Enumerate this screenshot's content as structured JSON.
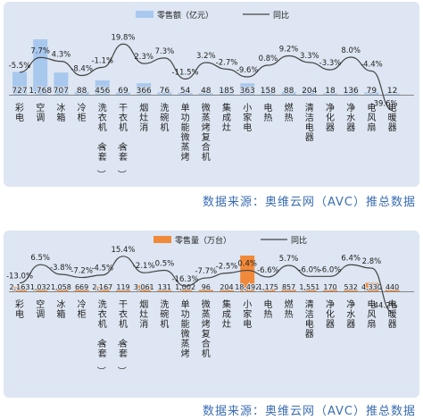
{
  "charts": [
    {
      "type": "bar",
      "legend": {
        "bar_label": "零售额（亿元）",
        "line_label": "同比",
        "placement": "top-center"
      },
      "bar_color": "#a8c8ee",
      "line_color": "#444444",
      "categories": [
        "彩电",
        "空调",
        "冰箱",
        "冷柜",
        "洗衣机（含套）",
        "干衣机（含套）",
        "烟灶消",
        "洗碗机",
        "单功能微蒸烤",
        "微蒸烤复合机",
        "集成灶",
        "小家电",
        "电热",
        "燃热",
        "清洁电器",
        "净化器",
        "净水器",
        "电风扇",
        "电暖器"
      ],
      "values": [
        727,
        1768,
        707,
        88,
        456,
        69,
        366,
        76,
        54,
        48,
        185,
        363,
        158,
        88,
        204,
        18,
        136,
        79,
        12
      ],
      "value_labels": [
        "727",
        "1,768",
        "707",
        "88",
        "456",
        "69",
        "366",
        "76",
        "54",
        "48",
        "185",
        "363",
        "158",
        "88",
        "204",
        "18",
        "136",
        "79",
        "12"
      ],
      "yoy_pct": [
        -5.5,
        7.7,
        4.3,
        -8.4,
        -1.1,
        19.8,
        2.3,
        7.3,
        -11.5,
        3.2,
        -2.7,
        -9.6,
        0.8,
        9.2,
        3.3,
        -3.3,
        8.0,
        -4.4,
        -39.6
      ],
      "yoy_labels": [
        "-5.5%",
        "7.7%",
        "4.3%",
        "-8.4%",
        "-1.1%",
        "19.8%",
        "2.3%",
        "7.3%",
        "-11.5%",
        "3.2%",
        "-2.7%",
        "-9.6%",
        "0.8%",
        "9.2%",
        "3.3%",
        "-3.3%",
        "8.0%",
        "-4.4%",
        "-39.6%"
      ],
      "source": "数据来源：奥维云网（AVC）推总数据"
    },
    {
      "type": "bar",
      "legend": {
        "bar_label": "零售量（万台）",
        "line_label": "同比",
        "placement": "top-center"
      },
      "bar_color": "#f0893a",
      "line_color": "#444444",
      "categories": [
        "彩电",
        "空调",
        "冰箱",
        "冷柜",
        "洗衣机（含套）",
        "干衣机（含套）",
        "烟灶消",
        "洗碗机",
        "单功能微蒸烤",
        "微蒸烤复合机",
        "集成灶",
        "小家电",
        "电热",
        "燃热",
        "清洁电器",
        "净化器",
        "净水器",
        "电风扇",
        "电暖器"
      ],
      "values": [
        2163,
        1032,
        1058,
        669,
        2167,
        119,
        3061,
        131,
        1002,
        96,
        204,
        18492,
        1175,
        857,
        1551,
        170,
        532,
        4330,
        440
      ],
      "value_labels": [
        "2,163",
        "1,032",
        "1,058",
        "669",
        "2,167",
        "119",
        "3,061",
        "131",
        "1,002",
        "96",
        "204",
        "18,492",
        "1,175",
        "857",
        "1,551",
        "170",
        "532",
        "4,330",
        "440"
      ],
      "yoy_pct": [
        -13.0,
        6.5,
        -3.8,
        -7.2,
        -4.5,
        15.4,
        -2.1,
        0.5,
        -16.3,
        -7.7,
        -2.5,
        0.4,
        -6.6,
        5.7,
        -6.0,
        -6.0,
        6.4,
        2.8,
        -44.2
      ],
      "yoy_labels": [
        "-13.0%",
        "6.5%",
        "-3.8%",
        "-7.2%",
        "-4.5%",
        "15.4%",
        "-2.1%",
        "0.5%",
        "-16.3%",
        "-7.7%",
        "-2.5%",
        "0.4%",
        "-6.6%",
        "5.7%",
        "-6.0%",
        "-6.0%",
        "6.4%",
        "2.8%",
        "-44.2%"
      ],
      "source": "数据来源：奥维云网（AVC）推总数据"
    }
  ]
}
